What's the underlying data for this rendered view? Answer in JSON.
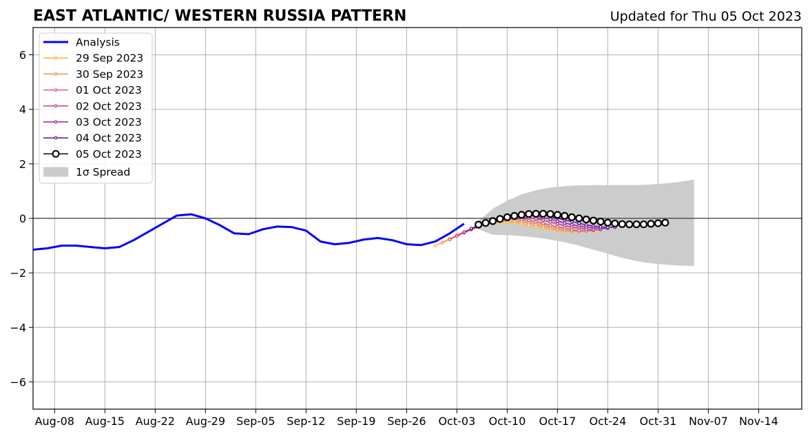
{
  "header": {
    "title": "EAST ATLANTIC/ WESTERN RUSSIA PATTERN",
    "updated": "Updated for Thu 05 Oct 2023"
  },
  "chart_data": {
    "type": "line",
    "title": "EAST ATLANTIC/ WESTERN RUSSIA PATTERN",
    "xlabel": "",
    "ylabel": "",
    "ylim": [
      -7,
      7
    ],
    "xlim": [
      "2023-08-05",
      "2023-11-20"
    ],
    "grid": true,
    "legend_position": "top-left",
    "y_ticks": [
      -6,
      -4,
      -2,
      0,
      2,
      4,
      6
    ],
    "y_tick_labels": [
      "−6",
      "−4",
      "−2",
      "0",
      "2",
      "4",
      "6"
    ],
    "x_ticks": [
      "2023-08-08",
      "2023-08-15",
      "2023-08-22",
      "2023-08-29",
      "2023-09-05",
      "2023-09-12",
      "2023-09-19",
      "2023-09-26",
      "2023-10-03",
      "2023-10-10",
      "2023-10-17",
      "2023-10-24",
      "2023-10-31",
      "2023-11-07",
      "2023-11-14"
    ],
    "x_tick_labels": [
      "Aug-08",
      "Aug-15",
      "Aug-22",
      "Aug-29",
      "Sep-05",
      "Sep-12",
      "Sep-19",
      "Sep-26",
      "Oct-03",
      "Oct-10",
      "Oct-17",
      "Oct-24",
      "Oct-31",
      "Nov-07",
      "Nov-14"
    ],
    "analysis": {
      "name": "Analysis",
      "color": "#0000ff",
      "x": [
        "2023-08-05",
        "2023-08-07",
        "2023-08-09",
        "2023-08-11",
        "2023-08-13",
        "2023-08-15",
        "2023-08-17",
        "2023-08-19",
        "2023-08-21",
        "2023-08-23",
        "2023-08-25",
        "2023-08-27",
        "2023-08-29",
        "2023-08-31",
        "2023-09-02",
        "2023-09-04",
        "2023-09-06",
        "2023-09-08",
        "2023-09-10",
        "2023-09-12",
        "2023-09-14",
        "2023-09-16",
        "2023-09-18",
        "2023-09-20",
        "2023-09-22",
        "2023-09-24",
        "2023-09-26",
        "2023-09-28",
        "2023-09-30",
        "2023-10-02",
        "2023-10-04"
      ],
      "y": [
        -1.15,
        -1.1,
        -1.0,
        -1.0,
        -1.05,
        -1.1,
        -1.05,
        -0.8,
        -0.5,
        -0.2,
        0.1,
        0.15,
        0.0,
        -0.25,
        -0.55,
        -0.58,
        -0.4,
        -0.3,
        -0.32,
        -0.45,
        -0.85,
        -0.95,
        -0.9,
        -0.78,
        -0.72,
        -0.8,
        -0.95,
        -0.98,
        -0.85,
        -0.55,
        -0.2
      ]
    },
    "forecasts": [
      {
        "name": "29 Sep 2023",
        "color": "#fdb72e",
        "start": "2023-09-30",
        "y": [
          -1.0,
          -0.88,
          -0.75,
          -0.62,
          -0.5,
          -0.4,
          -0.3,
          -0.22,
          -0.16,
          -0.13,
          -0.14,
          -0.17,
          -0.2,
          -0.25,
          -0.3,
          -0.35,
          -0.4,
          -0.44,
          -0.47,
          -0.48,
          -0.47
        ]
      },
      {
        "name": "30 Sep 2023",
        "color": "#f58f45",
        "start": "2023-10-01",
        "y": [
          -0.9,
          -0.75,
          -0.62,
          -0.5,
          -0.4,
          -0.3,
          -0.22,
          -0.15,
          -0.1,
          -0.08,
          -0.1,
          -0.12,
          -0.16,
          -0.22,
          -0.28,
          -0.34,
          -0.4,
          -0.44,
          -0.47,
          -0.48,
          -0.47
        ]
      },
      {
        "name": "01 Oct 2023",
        "color": "#e05a6e",
        "start": "2023-10-02",
        "y": [
          -0.78,
          -0.65,
          -0.53,
          -0.42,
          -0.32,
          -0.22,
          -0.14,
          -0.07,
          -0.03,
          -0.02,
          -0.04,
          -0.08,
          -0.13,
          -0.19,
          -0.26,
          -0.32,
          -0.37,
          -0.42,
          -0.45,
          -0.46,
          -0.45
        ]
      },
      {
        "name": "02 Oct 2023",
        "color": "#c23c85",
        "start": "2023-10-03",
        "y": [
          -0.65,
          -0.52,
          -0.4,
          -0.3,
          -0.2,
          -0.12,
          -0.05,
          0.0,
          0.04,
          0.04,
          0.02,
          -0.02,
          -0.07,
          -0.13,
          -0.2,
          -0.27,
          -0.32,
          -0.36,
          -0.4,
          -0.42,
          -0.42
        ]
      },
      {
        "name": "03 Oct 2023",
        "color": "#9a1fa0",
        "start": "2023-10-04",
        "y": [
          -0.5,
          -0.38,
          -0.28,
          -0.18,
          -0.08,
          0.0,
          0.06,
          0.1,
          0.12,
          0.11,
          0.08,
          0.03,
          -0.03,
          -0.1,
          -0.17,
          -0.23,
          -0.28,
          -0.32,
          -0.35,
          -0.37,
          -0.37
        ]
      },
      {
        "name": "04 Oct 2023",
        "color": "#5a10a0",
        "start": "2023-10-05",
        "y": [
          -0.37,
          -0.27,
          -0.17,
          -0.07,
          0.02,
          0.09,
          0.14,
          0.16,
          0.17,
          0.16,
          0.12,
          0.07,
          0.01,
          -0.06,
          -0.12,
          -0.18,
          -0.24,
          -0.28,
          -0.31,
          -0.33,
          -0.33
        ]
      },
      {
        "name": "05 Oct 2023",
        "color": "#000000",
        "start": "2023-10-06",
        "y": [
          -0.23,
          -0.17,
          -0.1,
          -0.02,
          0.04,
          0.09,
          0.13,
          0.16,
          0.17,
          0.17,
          0.16,
          0.13,
          0.09,
          0.04,
          0.0,
          -0.04,
          -0.08,
          -0.12,
          -0.16,
          -0.19,
          -0.21,
          -0.22,
          -0.22,
          -0.22,
          -0.2,
          -0.18,
          -0.16
        ]
      }
    ],
    "spread": {
      "name": "1σ Spread",
      "color": "#cccccc",
      "x": [
        "2023-10-06",
        "2023-10-08",
        "2023-10-10",
        "2023-10-12",
        "2023-10-14",
        "2023-10-16",
        "2023-10-18",
        "2023-10-20",
        "2023-10-22",
        "2023-10-24",
        "2023-10-26",
        "2023-10-28",
        "2023-10-30",
        "2023-11-01",
        "2023-11-03",
        "2023-11-05"
      ],
      "upper": [
        -0.1,
        0.35,
        0.65,
        0.88,
        1.03,
        1.13,
        1.18,
        1.21,
        1.22,
        1.22,
        1.22,
        1.22,
        1.24,
        1.28,
        1.34,
        1.42
      ],
      "lower": [
        -0.4,
        -0.6,
        -0.62,
        -0.65,
        -0.7,
        -0.78,
        -0.88,
        -1.0,
        -1.15,
        -1.3,
        -1.45,
        -1.57,
        -1.65,
        -1.7,
        -1.73,
        -1.75
      ]
    }
  }
}
